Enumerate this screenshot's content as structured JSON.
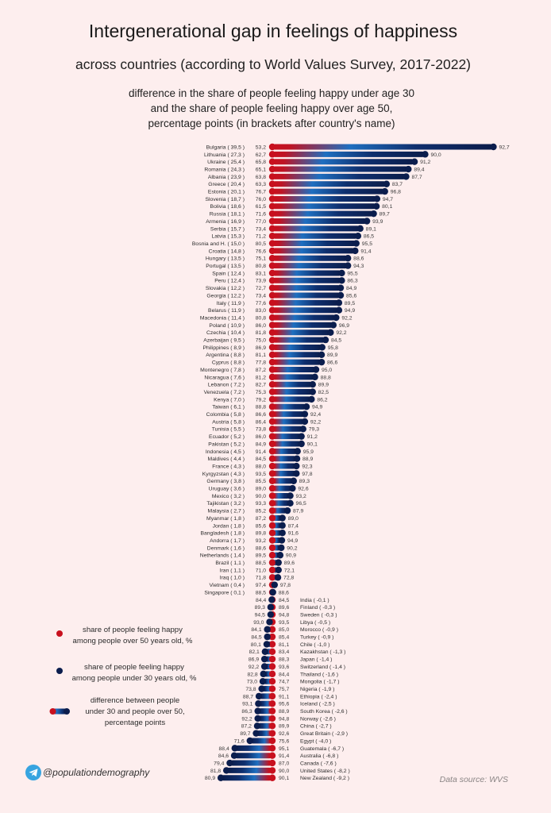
{
  "header": {
    "title": "Intergenerational gap in feelings of happiness",
    "subtitle": "across countries (according to World Values Survey, 2017-2022)",
    "description": [
      "difference in the share of people feeling happy under age 30",
      "and the share of people feeling happy over age 50,",
      "percentage points (in brackets after country's name)"
    ]
  },
  "legend": {
    "over50": [
      "share of people feeling happy",
      "among people over 50 years old, %"
    ],
    "under30": [
      "share of people feeling happy",
      "among people under 30 years old, %"
    ],
    "difference": [
      "difference between people",
      "under 30 and people over 50,",
      "percentage points"
    ]
  },
  "footer": {
    "handle": "@populationdemography",
    "handle_icon": "telegram-icon",
    "source": "Data source: WVS"
  },
  "colors": {
    "background": "#fdeeee",
    "over50": "#c8101e",
    "under30": "#0b1d4d",
    "mid": "#1e6fc0",
    "telegram": "#37a4e0"
  },
  "chart_data": {
    "type": "bar",
    "subtype": "diverging dumbbell (difference bars)",
    "title": "Intergenerational gap in feelings of happiness",
    "subtitle": "across countries (according to World Values Survey, 2017-2022)",
    "xlabel": "",
    "ylabel": "",
    "grid": false,
    "legend_position": "bottom-left",
    "decimal_separator": ",",
    "series": [
      {
        "name": "share of people feeling happy among people over 50 years old, %",
        "key": "over50"
      },
      {
        "name": "share of people feeling happy among people under 30 years old, %",
        "key": "under30"
      },
      {
        "name": "difference between people under 30 and people over 50, percentage points",
        "key": "diff"
      }
    ],
    "rows": [
      {
        "country": "Bulgaria",
        "diff": 39.5,
        "over50": 53.2,
        "under30": 92.7
      },
      {
        "country": "Lithuania",
        "diff": 27.3,
        "over50": 62.7,
        "under30": 90.0
      },
      {
        "country": "Ukraine",
        "diff": 25.4,
        "over50": 65.8,
        "under30": 91.2
      },
      {
        "country": "Romania",
        "diff": 24.3,
        "over50": 65.1,
        "under30": 89.4
      },
      {
        "country": "Albania",
        "diff": 23.9,
        "over50": 63.8,
        "under30": 87.7
      },
      {
        "country": "Greece",
        "diff": 20.4,
        "over50": 63.3,
        "under30": 83.7
      },
      {
        "country": "Estonia",
        "diff": 20.1,
        "over50": 76.7,
        "under30": 96.8
      },
      {
        "country": "Slovenia",
        "diff": 18.7,
        "over50": 76.0,
        "under30": 94.7
      },
      {
        "country": "Bolivia",
        "diff": 18.6,
        "over50": 61.5,
        "under30": 80.1
      },
      {
        "country": "Russia",
        "diff": 18.1,
        "over50": 71.6,
        "under30": 89.7
      },
      {
        "country": "Armenia",
        "diff": 16.9,
        "over50": 77.0,
        "under30": 93.9
      },
      {
        "country": "Serbia",
        "diff": 15.7,
        "over50": 73.4,
        "under30": 89.1
      },
      {
        "country": "Latvia",
        "diff": 15.3,
        "over50": 71.2,
        "under30": 86.5
      },
      {
        "country": "Bosnia and H.",
        "diff": 15.0,
        "over50": 80.5,
        "under30": 95.5
      },
      {
        "country": "Croatia",
        "diff": 14.8,
        "over50": 76.6,
        "under30": 91.4
      },
      {
        "country": "Hungary",
        "diff": 13.5,
        "over50": 75.1,
        "under30": 88.6
      },
      {
        "country": "Portugal",
        "diff": 13.5,
        "over50": 80.8,
        "under30": 94.3
      },
      {
        "country": "Spain",
        "diff": 12.4,
        "over50": 83.1,
        "under30": 95.5
      },
      {
        "country": "Peru",
        "diff": 12.4,
        "over50": 73.9,
        "under30": 86.3
      },
      {
        "country": "Slovakia",
        "diff": 12.2,
        "over50": 72.7,
        "under30": 84.9
      },
      {
        "country": "Georgia",
        "diff": 12.2,
        "over50": 73.4,
        "under30": 85.6
      },
      {
        "country": "Italy",
        "diff": 11.9,
        "over50": 77.6,
        "under30": 89.5
      },
      {
        "country": "Belarus",
        "diff": 11.9,
        "over50": 83.0,
        "under30": 94.9
      },
      {
        "country": "Macedonia",
        "diff": 11.4,
        "over50": 80.8,
        "under30": 92.2
      },
      {
        "country": "Poland",
        "diff": 10.9,
        "over50": 86.0,
        "under30": 96.9
      },
      {
        "country": "Czechia",
        "diff": 10.4,
        "over50": 81.8,
        "under30": 92.2
      },
      {
        "country": "Azerbaijan",
        "diff": 9.5,
        "over50": 75.0,
        "under30": 84.5
      },
      {
        "country": "Philippines",
        "diff": 8.9,
        "over50": 86.9,
        "under30": 95.8
      },
      {
        "country": "Argentina",
        "diff": 8.8,
        "over50": 81.1,
        "under30": 89.9
      },
      {
        "country": "Cyprus",
        "diff": 8.8,
        "over50": 77.8,
        "under30": 86.6
      },
      {
        "country": "Montenegro",
        "diff": 7.8,
        "over50": 87.2,
        "under30": 95.0
      },
      {
        "country": "Nicaragua",
        "diff": 7.6,
        "over50": 81.2,
        "under30": 88.8
      },
      {
        "country": "Lebanon",
        "diff": 7.2,
        "over50": 82.7,
        "under30": 89.9
      },
      {
        "country": "Venezuela",
        "diff": 7.2,
        "over50": 75.3,
        "under30": 82.5
      },
      {
        "country": "Kenya",
        "diff": 7.0,
        "over50": 79.2,
        "under30": 86.2
      },
      {
        "country": "Taiwan",
        "diff": 6.1,
        "over50": 88.8,
        "under30": 94.9
      },
      {
        "country": "Colombia",
        "diff": 5.8,
        "over50": 86.6,
        "under30": 92.4
      },
      {
        "country": "Austria",
        "diff": 5.8,
        "over50": 86.4,
        "under30": 92.2
      },
      {
        "country": "Tunisia",
        "diff": 5.5,
        "over50": 73.8,
        "under30": 79.3
      },
      {
        "country": "Ecuador",
        "diff": 5.2,
        "over50": 86.0,
        "under30": 91.2
      },
      {
        "country": "Pakistan",
        "diff": 5.2,
        "over50": 84.9,
        "under30": 90.1
      },
      {
        "country": "Indonesia",
        "diff": 4.5,
        "over50": 91.4,
        "under30": 95.9
      },
      {
        "country": "Maldives",
        "diff": 4.4,
        "over50": 84.5,
        "under30": 88.9
      },
      {
        "country": "France",
        "diff": 4.3,
        "over50": 88.0,
        "under30": 92.3
      },
      {
        "country": "Kyrgyzstan",
        "diff": 4.3,
        "over50": 93.5,
        "under30": 97.8
      },
      {
        "country": "Germany",
        "diff": 3.8,
        "over50": 85.5,
        "under30": 89.3
      },
      {
        "country": "Uruguay",
        "diff": 3.6,
        "over50": 89.0,
        "under30": 92.6
      },
      {
        "country": "Mexico",
        "diff": 3.2,
        "over50": 90.0,
        "under30": 93.2
      },
      {
        "country": "Tajikistan",
        "diff": 3.2,
        "over50": 93.3,
        "under30": 96.5
      },
      {
        "country": "Malaysia",
        "diff": 2.7,
        "over50": 85.2,
        "under30": 87.9
      },
      {
        "country": "Myanmar",
        "diff": 1.8,
        "over50": 87.2,
        "under30": 89.0
      },
      {
        "country": "Jordan",
        "diff": 1.8,
        "over50": 85.6,
        "under30": 87.4
      },
      {
        "country": "Bangladesh",
        "diff": 1.8,
        "over50": 89.8,
        "under30": 91.6
      },
      {
        "country": "Andorra",
        "diff": 1.7,
        "over50": 93.2,
        "under30": 94.9
      },
      {
        "country": "Denmark",
        "diff": 1.6,
        "over50": 88.6,
        "under30": 90.2
      },
      {
        "country": "Netherlands",
        "diff": 1.4,
        "over50": 89.5,
        "under30": 90.9
      },
      {
        "country": "Brazil",
        "diff": 1.1,
        "over50": 88.5,
        "under30": 89.6
      },
      {
        "country": "Iran",
        "diff": 1.1,
        "over50": 71.0,
        "under30": 72.1
      },
      {
        "country": "Iraq",
        "diff": 1.0,
        "over50": 71.8,
        "under30": 72.8
      },
      {
        "country": "Vietnam",
        "diff": 0.4,
        "over50": 97.4,
        "under30": 97.8
      },
      {
        "country": "Singapore",
        "diff": 0.1,
        "over50": 88.5,
        "under30": 88.6
      },
      {
        "country": "India",
        "diff": -0.1,
        "over50": 84.5,
        "under30": 84.4
      },
      {
        "country": "Finland",
        "diff": -0.3,
        "over50": 89.6,
        "under30": 89.3
      },
      {
        "country": "Sweden",
        "diff": -0.3,
        "over50": 94.8,
        "under30": 94.5
      },
      {
        "country": "Libya",
        "diff": -0.5,
        "over50": 93.5,
        "under30": 93.0
      },
      {
        "country": "Morocco",
        "diff": -0.9,
        "over50": 85.0,
        "under30": 84.1
      },
      {
        "country": "Turkey",
        "diff": -0.9,
        "over50": 85.4,
        "under30": 84.5
      },
      {
        "country": "Chile",
        "diff": -1.0,
        "over50": 81.1,
        "under30": 80.1
      },
      {
        "country": "Kazakhstan",
        "diff": -1.3,
        "over50": 83.4,
        "under30": 82.1
      },
      {
        "country": "Japan",
        "diff": -1.4,
        "over50": 88.3,
        "under30": 86.9
      },
      {
        "country": "Switzerland",
        "diff": -1.4,
        "over50": 93.6,
        "under30": 92.2
      },
      {
        "country": "Thailand",
        "diff": -1.6,
        "over50": 84.4,
        "under30": 82.8
      },
      {
        "country": "Mongolia",
        "diff": -1.7,
        "over50": 74.7,
        "under30": 73.0
      },
      {
        "country": "Nigeria",
        "diff": -1.9,
        "over50": 75.7,
        "under30": 73.8
      },
      {
        "country": "Ethiopia",
        "diff": -2.4,
        "over50": 91.1,
        "under30": 88.7
      },
      {
        "country": "Iceland",
        "diff": -2.5,
        "over50": 95.6,
        "under30": 93.1
      },
      {
        "country": "South Korea",
        "diff": -2.6,
        "over50": 88.9,
        "under30": 86.3
      },
      {
        "country": "Norway",
        "diff": -2.6,
        "over50": 94.8,
        "under30": 92.2
      },
      {
        "country": "China",
        "diff": -2.7,
        "over50": 89.9,
        "under30": 87.2
      },
      {
        "country": "Great Britain",
        "diff": -2.9,
        "over50": 92.6,
        "under30": 89.7
      },
      {
        "country": "Egypt",
        "diff": -4.0,
        "over50": 75.6,
        "under30": 71.6
      },
      {
        "country": "Guatemala",
        "diff": -6.7,
        "over50": 95.1,
        "under30": 88.4
      },
      {
        "country": "Australia",
        "diff": -6.8,
        "over50": 91.4,
        "under30": 84.6
      },
      {
        "country": "Canada",
        "diff": -7.6,
        "over50": 87.0,
        "under30": 79.4
      },
      {
        "country": "United States",
        "diff": -8.2,
        "over50": 90.0,
        "under30": 81.8
      },
      {
        "country": "New Zealand",
        "diff": -9.2,
        "over50": 90.1,
        "under30": 80.9
      }
    ]
  }
}
